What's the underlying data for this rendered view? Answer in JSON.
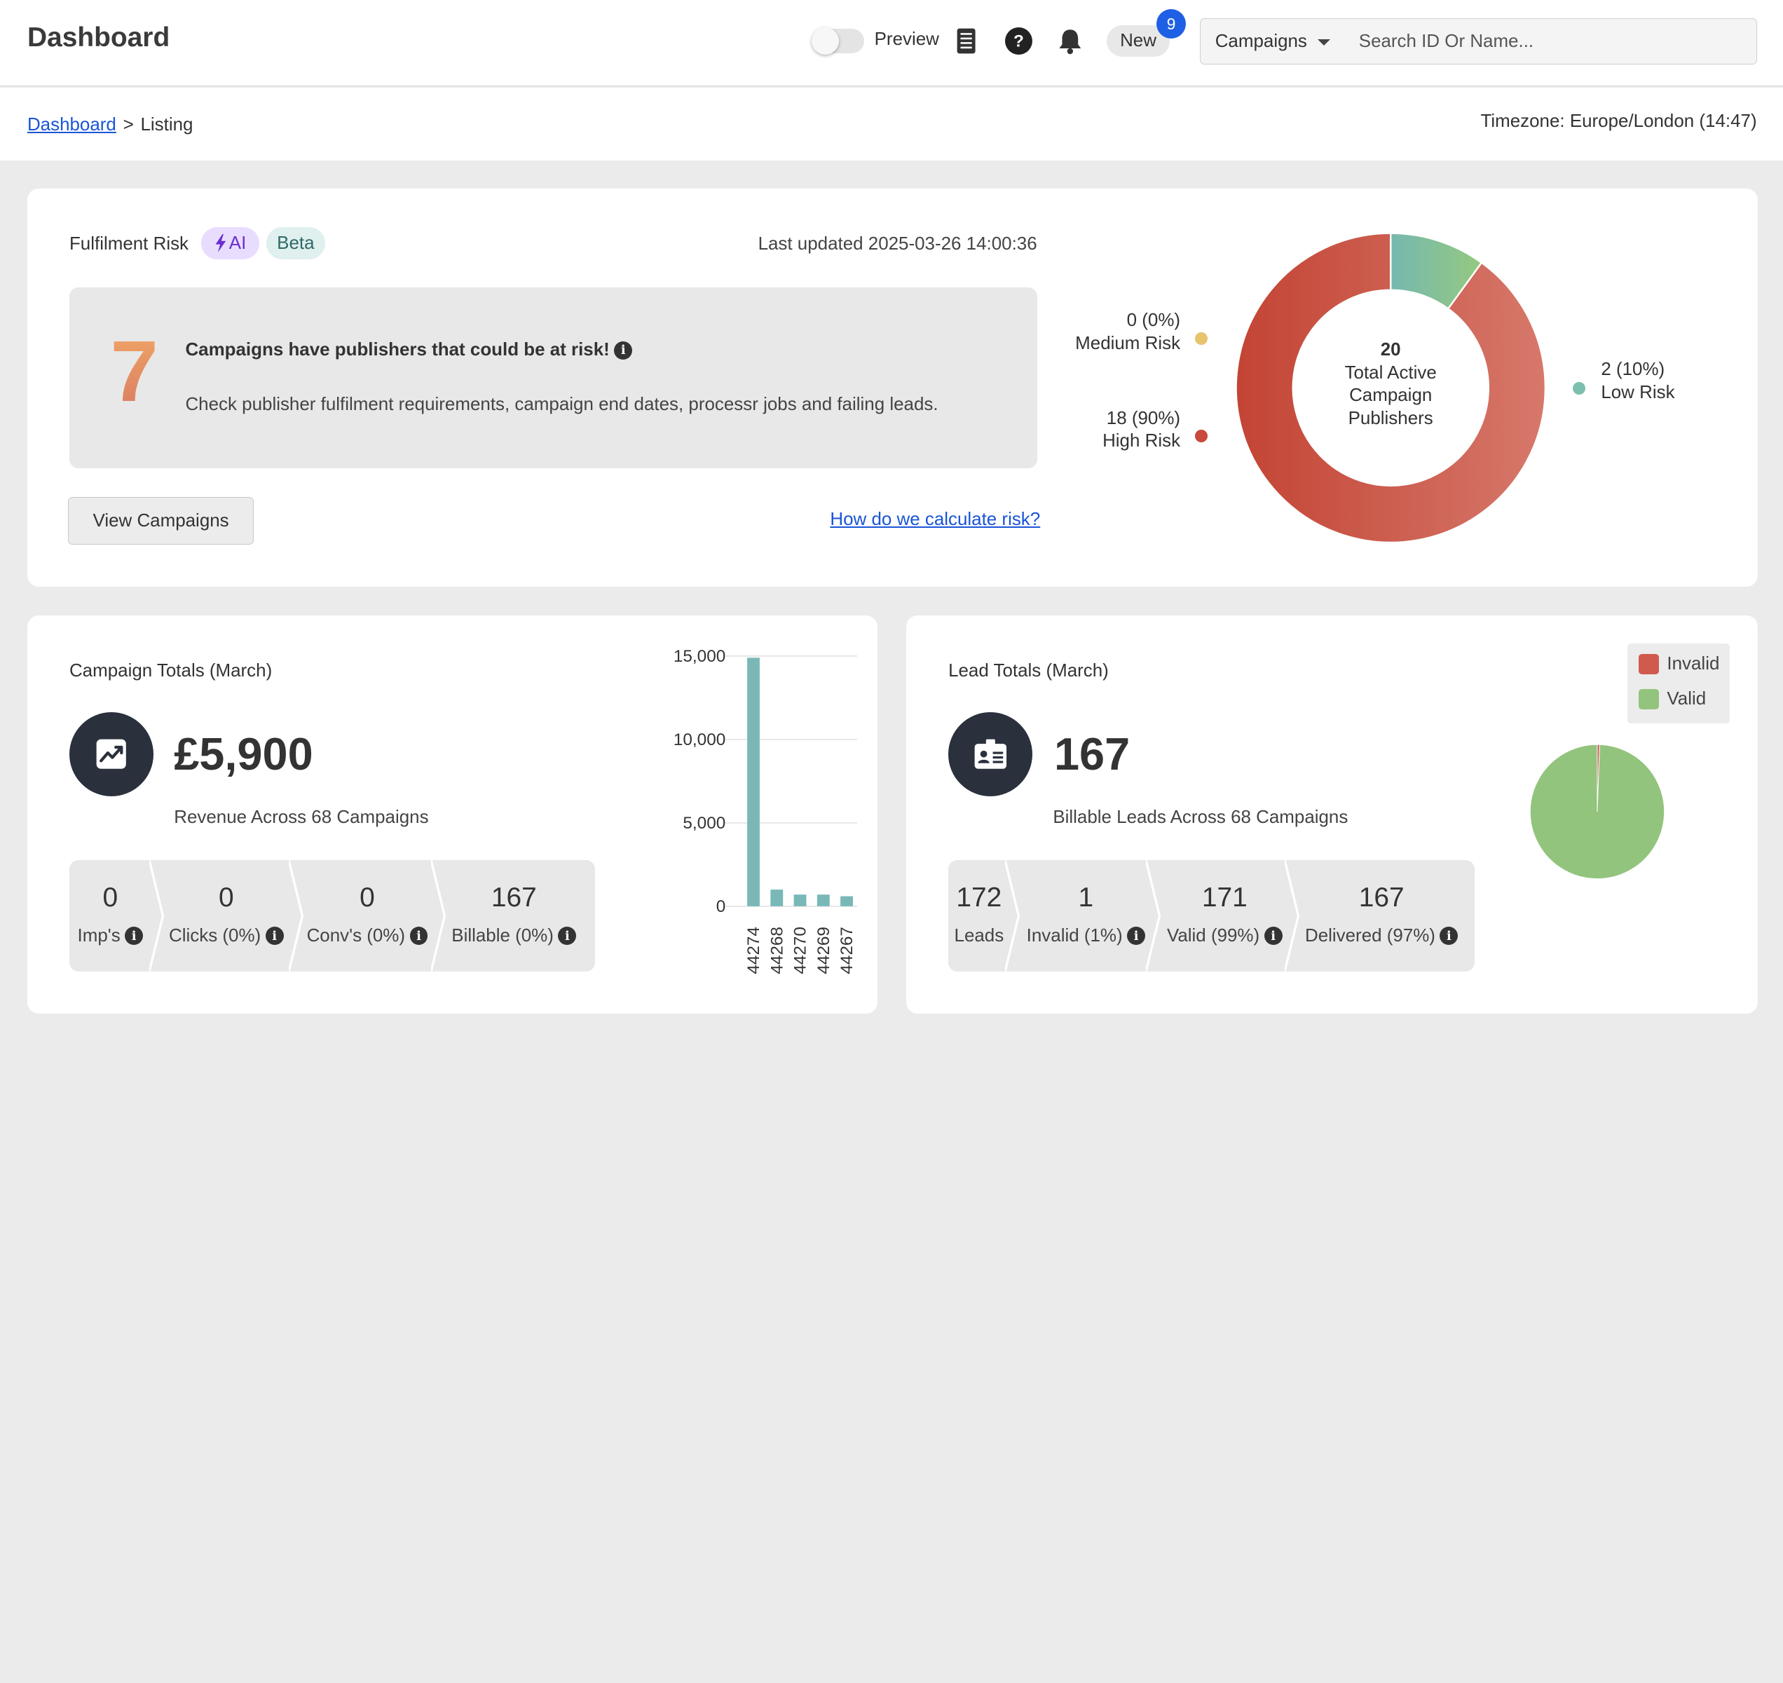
{
  "topbar": {
    "title": "Dashboard",
    "preview_label": "Preview",
    "new_label": "New",
    "new_count": "9",
    "campaign_select": "Campaigns",
    "search_placeholder": "Search ID Or Name..."
  },
  "breadcrumb": {
    "root": "Dashboard",
    "separator": ">",
    "current": "Listing"
  },
  "timezone": "Timezone: Europe/London (14:47)",
  "risk": {
    "title": "Fulfilment Risk",
    "ai_badge": "AI",
    "beta_badge": "Beta",
    "last_updated": "Last updated 2025-03-26 14:00:36",
    "count": "7",
    "headline": "Campaigns have publishers that could be at risk!",
    "description": "Check publisher fulfilment requirements, campaign end dates, processr jobs and failing leads.",
    "view_button": "View Campaigns",
    "link": "How do we calculate risk?",
    "donut_center": [
      "20",
      "Total Active",
      "Campaign",
      "Publishers"
    ],
    "legend": {
      "medium_value": "0 (0%)",
      "medium_label": "Medium Risk",
      "high_value": "18 (90%)",
      "high_label": "High Risk",
      "low_value": "2 (10%)",
      "low_label": "Low Risk"
    },
    "colors": {
      "high": "#c9493b",
      "medium": "#e8c36e",
      "low": "#7dbfae"
    }
  },
  "campaign_totals": {
    "title": "Campaign Totals (March)",
    "icon": "trend-chart-icon",
    "revenue": "£5,900",
    "caption": "Revenue Across 68 Campaigns",
    "stats": [
      {
        "value": "0",
        "label": "Imp's"
      },
      {
        "value": "0",
        "label": "Clicks (0%)"
      },
      {
        "value": "0",
        "label": "Conv's (0%)"
      },
      {
        "value": "167",
        "label": "Billable (0%)"
      }
    ]
  },
  "lead_totals": {
    "title": "Lead Totals (March)",
    "icon": "id-card-icon",
    "billable": "167",
    "caption": "Billable Leads Across 68 Campaigns",
    "stats": [
      {
        "value": "172",
        "label": "Leads"
      },
      {
        "value": "1",
        "label": "Invalid (1%)"
      },
      {
        "value": "171",
        "label": "Valid (99%)"
      },
      {
        "value": "167",
        "label": "Delivered (97%)"
      }
    ],
    "legend": {
      "invalid": "Invalid",
      "valid": "Valid"
    }
  },
  "chart_data": [
    {
      "type": "pie",
      "variant": "donut",
      "labels": [
        "High Risk",
        "Low Risk",
        "Medium Risk"
      ],
      "values": [
        18,
        2,
        0
      ],
      "colors": [
        "#c9493b",
        "#7dbfae",
        "#e8c36e"
      ]
    },
    {
      "type": "bar",
      "categories": [
        "44274",
        "44268",
        "44270",
        "44269",
        "44267"
      ],
      "values": [
        14900,
        1000,
        700,
        700,
        600
      ],
      "ylim": [
        0,
        15000
      ],
      "yticks": [
        "15,000",
        "10,000",
        "5,000",
        "0"
      ],
      "ytick_values": [
        15000,
        10000,
        5000,
        0
      ],
      "grid": true,
      "color": "#7ab8b8"
    },
    {
      "type": "pie",
      "labels": [
        "Invalid",
        "Valid"
      ],
      "values": [
        1,
        171
      ],
      "colors": [
        "#d05a4e",
        "#93c47d"
      ],
      "legend": "top-right"
    }
  ]
}
